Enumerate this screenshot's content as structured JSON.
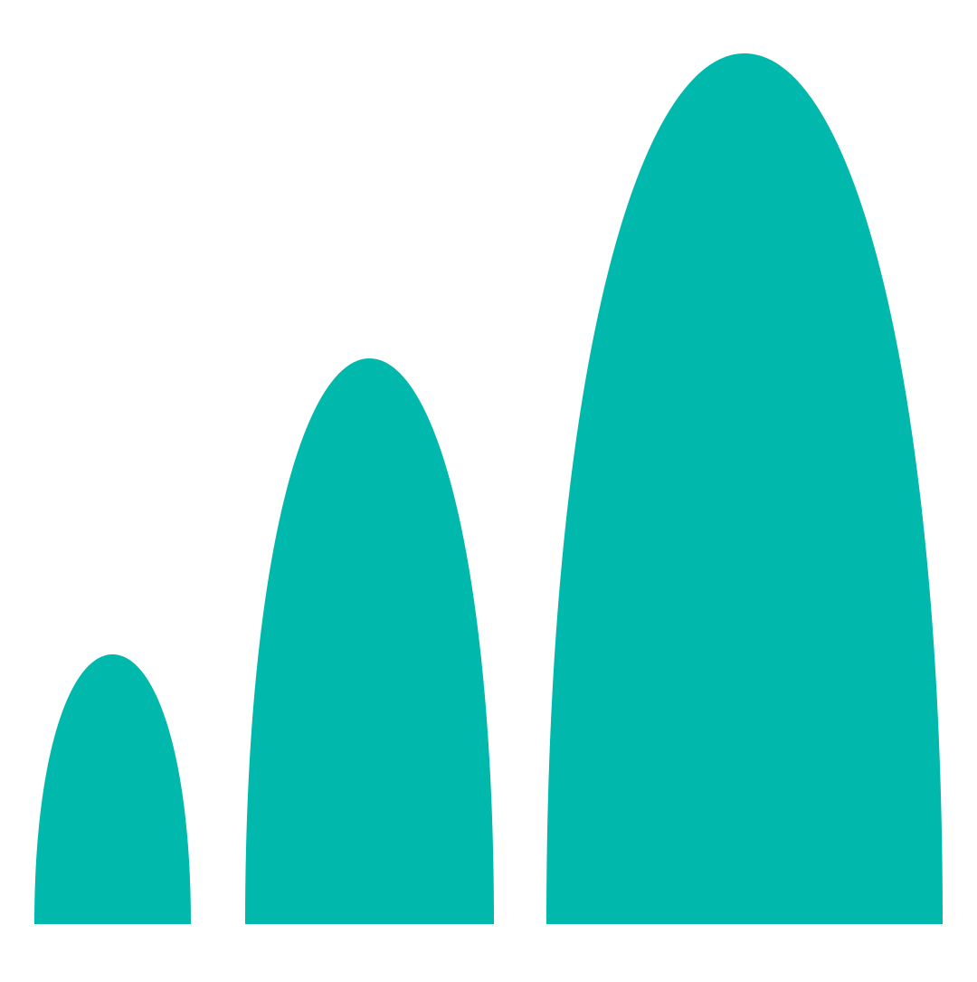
{
  "graphic": {
    "name": "three-arch-shapes",
    "fill_color": "#00B8AC",
    "background_color": "#FFFFFF",
    "shapes": [
      {
        "name": "small-arch",
        "relative_height": 0.31
      },
      {
        "name": "medium-arch",
        "relative_height": 0.65
      },
      {
        "name": "large-arch",
        "relative_height": 1.0
      }
    ]
  }
}
